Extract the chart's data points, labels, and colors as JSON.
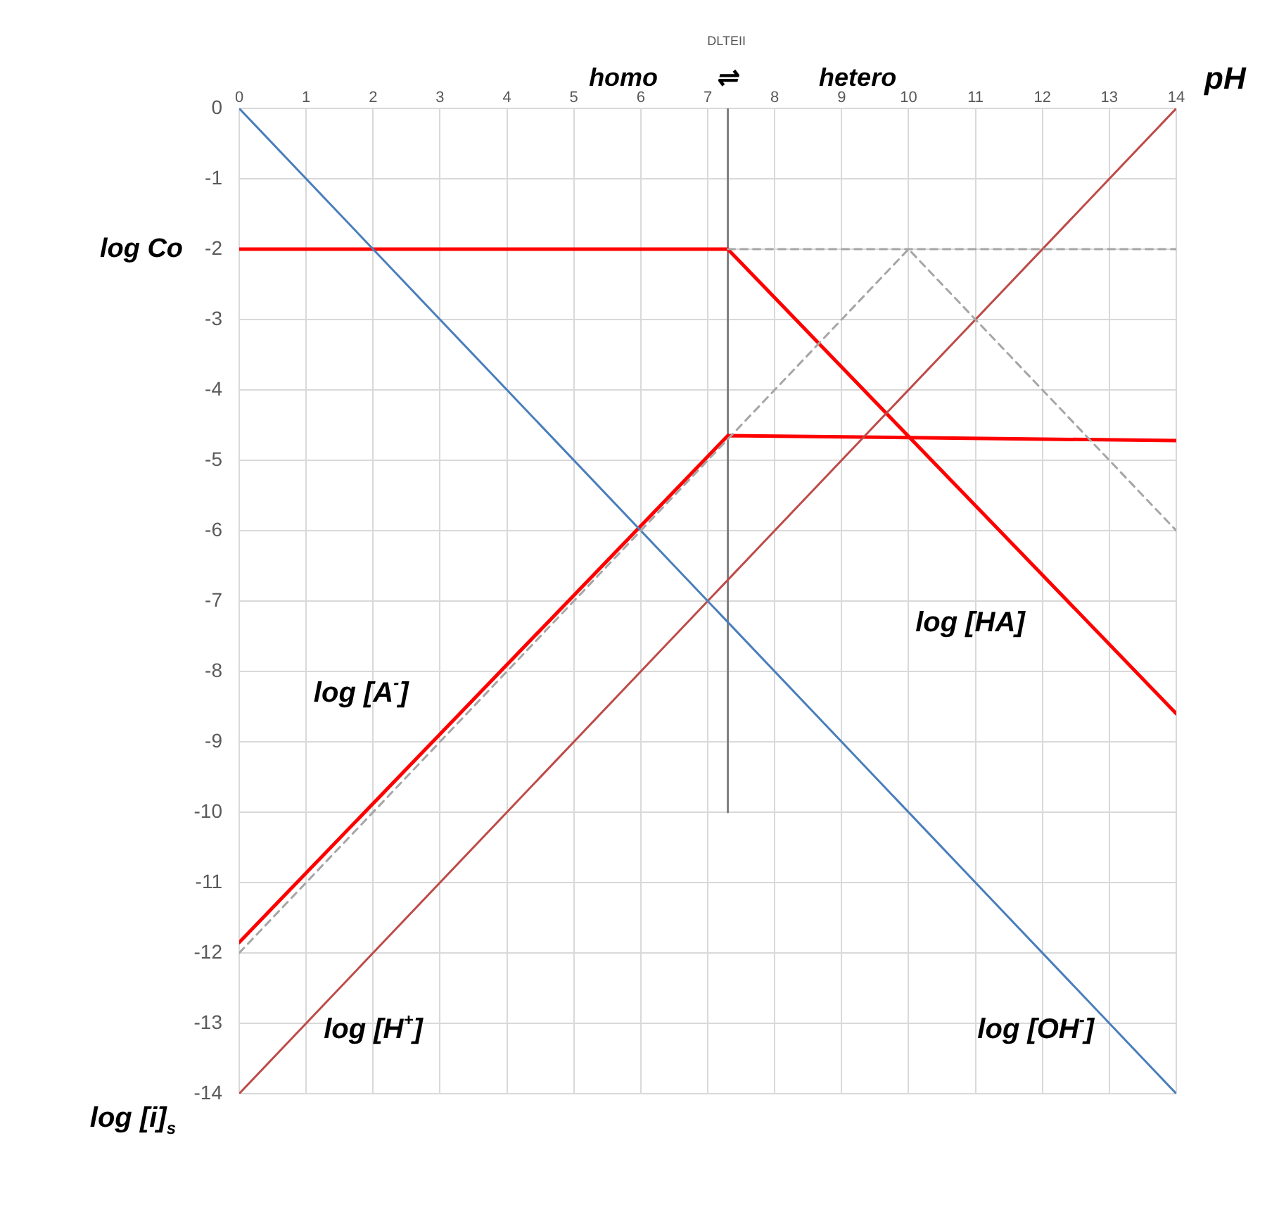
{
  "chart_data": {
    "type": "line",
    "xlabel": "pH",
    "ylabel": "log [i]$_{s}$",
    "xlim": [
      0,
      14
    ],
    "xticks": [
      0,
      1,
      2,
      3,
      4,
      5,
      6,
      7,
      8,
      9,
      10,
      11,
      12,
      13,
      14
    ],
    "ylim": [
      -14,
      0
    ],
    "yticks": [
      0,
      -1,
      -2,
      -3,
      -4,
      -5,
      -6,
      -7,
      -8,
      -9,
      -10,
      -11,
      -12,
      -13,
      -14
    ],
    "grid": true,
    "legend": false,
    "marker": "none",
    "series": [
      {
        "color": "#a6a6a6",
        "line_style": "dashed",
        "x": [
          0,
          10,
          14
        ],
        "values": [
          -12,
          -2,
          -6
        ]
      },
      {
        "color": "#a6a6a6",
        "line_style": "dashed",
        "x": [
          7.3,
          14
        ],
        "values": [
          -2,
          -2
        ]
      },
      {
        "color": "#4a7ebb",
        "line_style": "solid",
        "x": [
          0,
          14
        ],
        "values": [
          0,
          -14
        ]
      },
      {
        "color": "#be4b48",
        "line_style": "solid",
        "x": [
          0,
          14
        ],
        "values": [
          -14,
          0
        ]
      },
      {
        "color": "#ff0000",
        "line_style": "solid",
        "x": [
          0,
          7.3,
          14
        ],
        "values": [
          -2,
          -2,
          -8.6
        ]
      },
      {
        "color": "#ff0000",
        "line_style": "solid",
        "x": [
          0,
          7.3,
          14
        ],
        "values": [
          -11.85,
          -4.65,
          -4.72
        ]
      },
      {
        "color": "#7f7f7f",
        "line_style": "solid",
        "x": [
          7.3,
          7.3
        ],
        "values": [
          0,
          -10
        ]
      }
    ],
    "annotations": [
      "DLTEII",
      "homo",
      "⇌",
      "hetero",
      "log Co",
      "log [A$^{-}$]",
      "log [HA]",
      "log [H$^{+}$]",
      "log [OH$^{-}$]"
    ]
  }
}
